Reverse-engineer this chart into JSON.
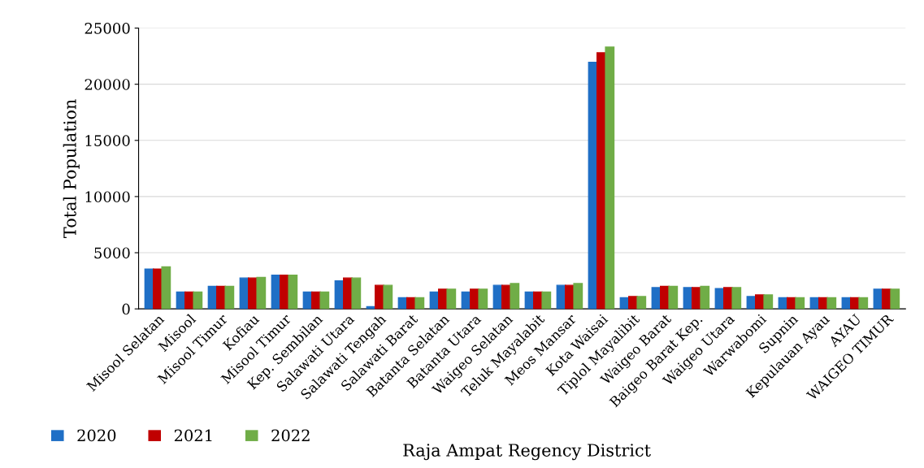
{
  "chart_data": {
    "type": "bar",
    "xlabel": "Raja Ampat Regency District",
    "ylabel": "Total Population",
    "categories": [
      "Misool Selatan",
      "Misool",
      "Misool Timur",
      "Kofiau",
      "Misool Timur",
      "Kep. Sembilan",
      "Salawati Utara",
      "Salawati Tengah",
      "Salawati Barat",
      "Batanta Selatan",
      "Batanta Utara",
      "Waigeo Selatan",
      "Teluk Mayalabit",
      "Meos Mansar",
      "Kota Waisai",
      "Tiplol Mayalibit",
      "Waigeo Barat",
      "Baigeo Barat Kep.",
      "Waigeo Utara",
      "Warwabomi",
      "Supnin",
      "Kepulauan Ayau",
      "AYAU",
      "WAIGEO TIMUR"
    ],
    "series": [
      {
        "name": "2020",
        "color": "#1f6fc6",
        "values": [
          3550,
          1500,
          2000,
          2750,
          3000,
          1500,
          2500,
          200,
          1000,
          1500,
          1500,
          2100,
          1500,
          2100,
          21950,
          1000,
          1900,
          1900,
          1800,
          1100,
          1000,
          1000,
          1000,
          1750
        ]
      },
      {
        "name": "2021",
        "color": "#c00000",
        "values": [
          3550,
          1500,
          2000,
          2750,
          3000,
          1500,
          2750,
          2100,
          1000,
          1750,
          1750,
          2100,
          1500,
          2100,
          22800,
          1100,
          2000,
          1900,
          1900,
          1250,
          1000,
          1000,
          1000,
          1750
        ]
      },
      {
        "name": "2022",
        "color": "#70ad47",
        "values": [
          3750,
          1500,
          2000,
          2800,
          3000,
          1500,
          2750,
          2100,
          1000,
          1750,
          1750,
          2250,
          1500,
          2250,
          23300,
          1100,
          2000,
          2000,
          1900,
          1250,
          1000,
          1000,
          1000,
          1750
        ]
      }
    ],
    "ylim": [
      0,
      25000
    ],
    "yticks": [
      0,
      5000,
      10000,
      15000,
      20000,
      25000
    ],
    "grid": "y",
    "legend": "bottom left"
  }
}
